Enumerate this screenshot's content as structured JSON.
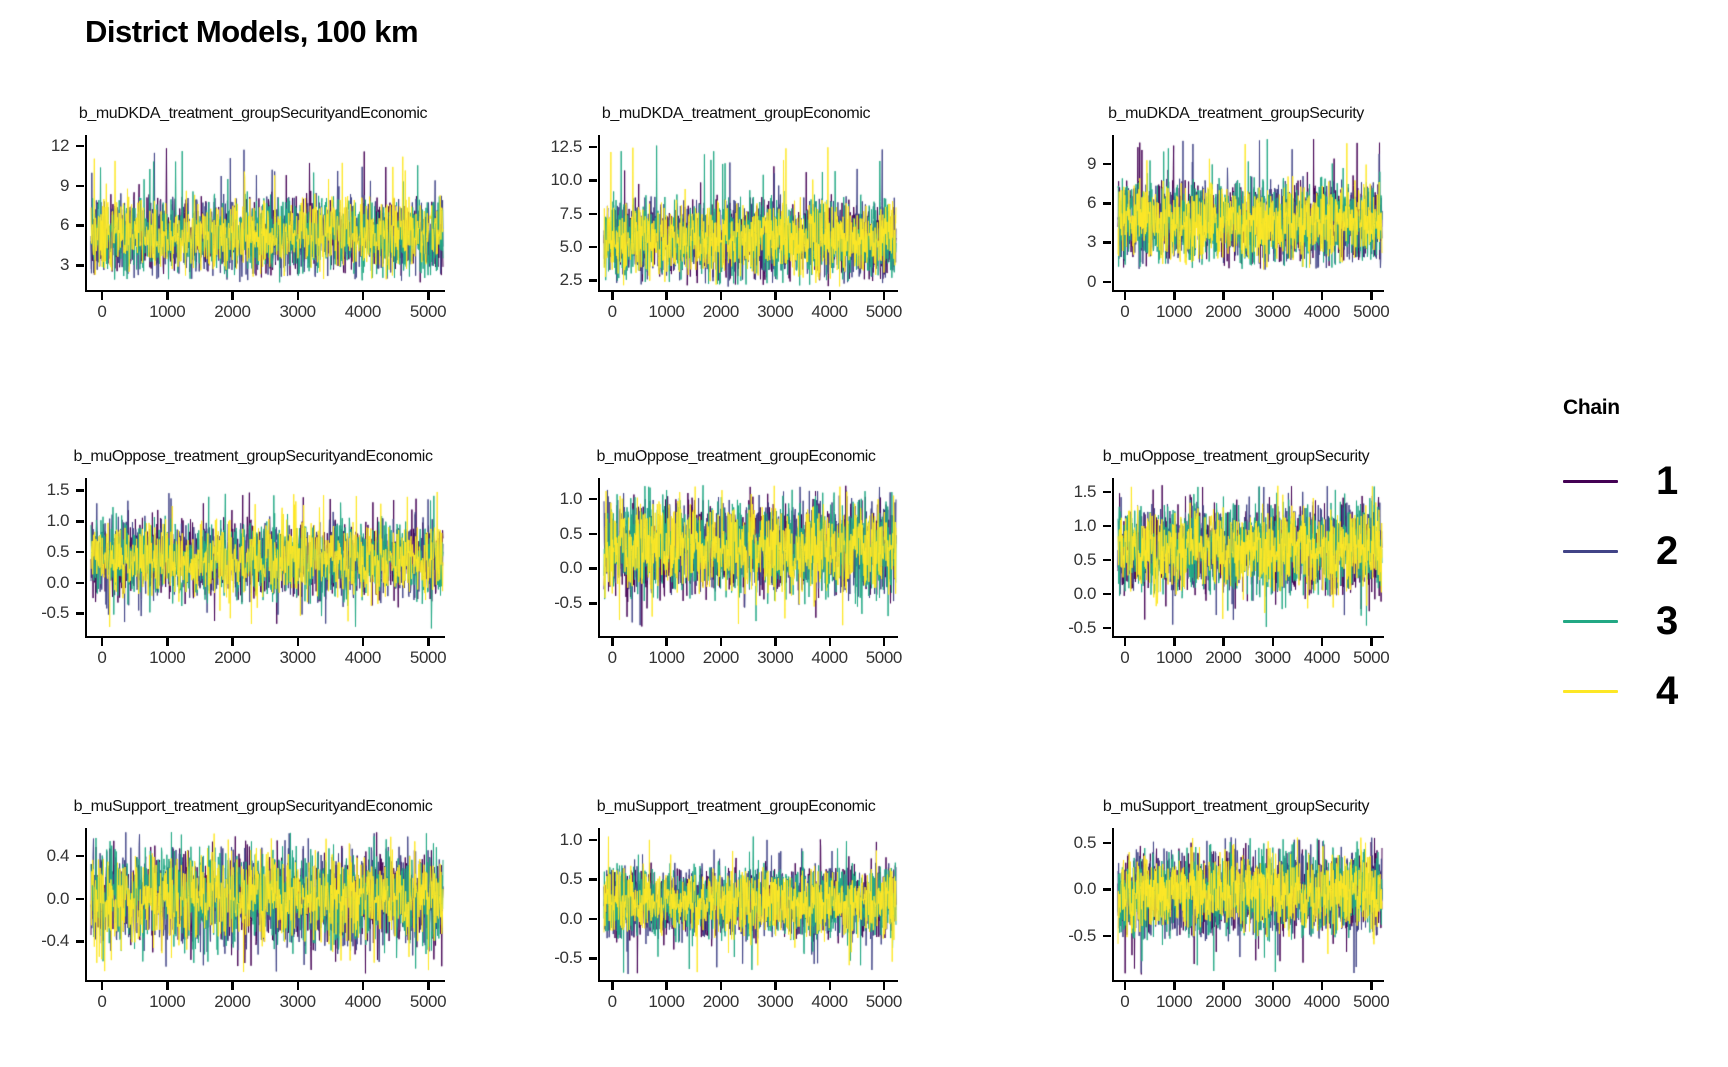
{
  "page": {
    "title": "District Models, 100 km"
  },
  "legend": {
    "title": "Chain",
    "items": [
      {
        "label": "1",
        "color": "#440154"
      },
      {
        "label": "2",
        "color": "#414487"
      },
      {
        "label": "3",
        "color": "#22A884"
      },
      {
        "label": "4",
        "color": "#FDE725"
      }
    ]
  },
  "chart_data": {
    "type": "line",
    "subtype": "mcmc-trace-grid",
    "title": "District Models, 100 km",
    "legend_title": "Chain",
    "legend_position": "right",
    "grid": {
      "rows": 3,
      "cols": 3
    },
    "axis_color": "#000000",
    "tick_label_color": "#333333",
    "chains": [
      {
        "name": "1",
        "color": "#440154"
      },
      {
        "name": "2",
        "color": "#414487"
      },
      {
        "name": "3",
        "color": "#22A884"
      },
      {
        "name": "4",
        "color": "#FDE725"
      }
    ],
    "x": {
      "tick_labels": [
        "0",
        "1000",
        "2000",
        "3000",
        "4000",
        "5000"
      ],
      "tick_values": [
        0,
        1000,
        2000,
        3000,
        4000,
        5000
      ],
      "range": [
        0,
        5000
      ],
      "n_iterations": 5000
    },
    "panels": [
      {
        "title": "b_muDKDA_treatment_groupSecurityandEconomic",
        "y_tick_labels": [
          "3",
          "6",
          "9",
          "12"
        ],
        "y_tick_values": [
          3,
          6,
          9,
          12
        ],
        "y_domain": [
          1.0,
          12.8
        ],
        "trace_bulk": [
          2.3,
          8.2
        ],
        "trace_extremes": [
          1.7,
          11.8
        ]
      },
      {
        "title": "b_muDKDA_treatment_groupEconomic",
        "y_tick_labels": [
          "2.5",
          "5.0",
          "7.5",
          "10.0",
          "12.5"
        ],
        "y_tick_values": [
          2.5,
          5.0,
          7.5,
          10.0,
          12.5
        ],
        "y_domain": [
          1.6,
          13.4
        ],
        "trace_bulk": [
          2.6,
          8.5
        ],
        "trace_extremes": [
          2.0,
          12.7
        ]
      },
      {
        "title": "b_muDKDA_treatment_groupSecurity",
        "y_tick_labels": [
          "0",
          "3",
          "6",
          "9"
        ],
        "y_tick_values": [
          0,
          3,
          6,
          9
        ],
        "y_domain": [
          -0.8,
          11.2
        ],
        "trace_bulk": [
          1.5,
          7.6
        ],
        "trace_extremes": [
          0.9,
          10.9
        ]
      },
      {
        "title": "b_muOppose_treatment_groupSecurityandEconomic",
        "y_tick_labels": [
          "-0.5",
          "0.0",
          "0.5",
          "1.0",
          "1.5"
        ],
        "y_tick_values": [
          -0.5,
          0.0,
          0.5,
          1.0,
          1.5
        ],
        "y_domain": [
          -0.9,
          1.7
        ],
        "trace_bulk": [
          -0.28,
          1.02
        ],
        "trace_extremes": [
          -0.75,
          1.5
        ]
      },
      {
        "title": "b_muOppose_treatment_groupEconomic",
        "y_tick_labels": [
          "-0.5",
          "0.0",
          "0.5",
          "1.0"
        ],
        "y_tick_values": [
          -0.5,
          0.0,
          0.5,
          1.0
        ],
        "y_domain": [
          -1.0,
          1.3
        ],
        "trace_bulk": [
          -0.4,
          1.0
        ],
        "trace_extremes": [
          -0.9,
          1.2
        ]
      },
      {
        "title": "b_muOppose_treatment_groupSecurity",
        "y_tick_labels": [
          "-0.5",
          "0.0",
          "0.5",
          "1.0",
          "1.5"
        ],
        "y_tick_values": [
          -0.5,
          0.0,
          0.5,
          1.0,
          1.5
        ],
        "y_domain": [
          -0.65,
          1.7
        ],
        "trace_bulk": [
          0.0,
          1.28
        ],
        "trace_extremes": [
          -0.5,
          1.6
        ]
      },
      {
        "title": "b_muSupport_treatment_groupSecurityandEconomic",
        "y_tick_labels": [
          "-0.4",
          "0.0",
          "0.4"
        ],
        "y_tick_values": [
          -0.4,
          0.0,
          0.4
        ],
        "y_domain": [
          -0.78,
          0.66
        ],
        "trace_bulk": [
          -0.46,
          0.46
        ],
        "trace_extremes": [
          -0.7,
          0.63
        ]
      },
      {
        "title": "b_muSupport_treatment_groupEconomic",
        "y_tick_labels": [
          "-0.5",
          "0.0",
          "0.5",
          "1.0"
        ],
        "y_tick_values": [
          -0.5,
          0.0,
          0.5,
          1.0
        ],
        "y_domain": [
          -0.8,
          1.15
        ],
        "trace_bulk": [
          -0.27,
          0.68
        ],
        "trace_extremes": [
          -0.73,
          1.05
        ]
      },
      {
        "title": "b_muSupport_treatment_groupSecurity",
        "y_tick_labels": [
          "-0.5",
          "0.0",
          "0.5"
        ],
        "y_tick_values": [
          -0.5,
          0.0,
          0.5
        ],
        "y_domain": [
          -1.0,
          0.66
        ],
        "trace_bulk": [
          -0.5,
          0.42
        ],
        "trace_extremes": [
          -0.93,
          0.56
        ]
      }
    ]
  }
}
